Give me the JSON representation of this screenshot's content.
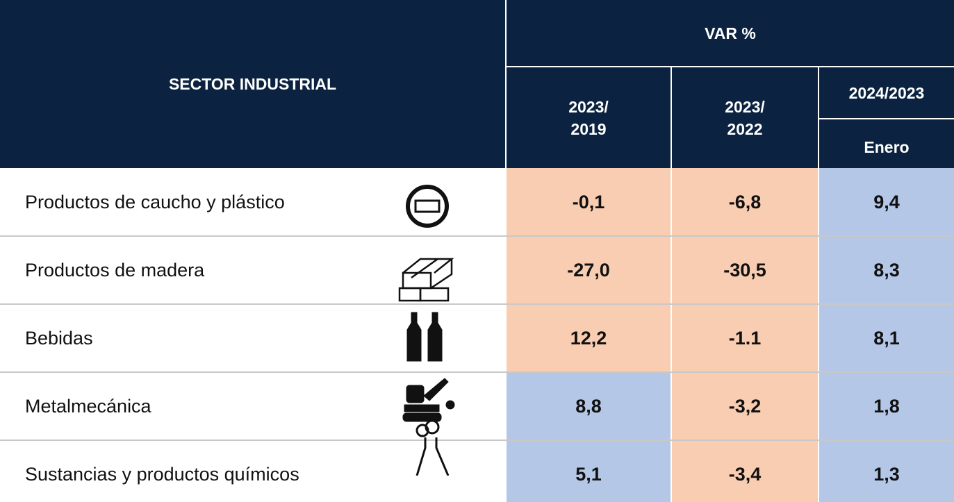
{
  "header": {
    "sector": "SECTOR INDUSTRIAL",
    "var": "VAR %",
    "col1": "2023/\n2019",
    "col2": "2023/\n2022",
    "col3": "2024/2023",
    "col3_sub": "Enero"
  },
  "table": {
    "rows": [
      {
        "label": "Productos de caucho y plástico",
        "cells": [
          {
            "text": "-0,1",
            "color": "#f8cdb1"
          },
          {
            "text": "-6,8",
            "color": "#f8cdb1"
          },
          {
            "text": "9,4",
            "color": "#b4c7e7"
          }
        ]
      },
      {
        "label": "Productos de madera",
        "cells": [
          {
            "text": "-27,0",
            "color": "#f8cdb1"
          },
          {
            "text": "-30,5",
            "color": "#f8cdb1"
          },
          {
            "text": "8,3",
            "color": "#b4c7e7"
          }
        ]
      },
      {
        "label": "Bebidas",
        "cells": [
          {
            "text": "12,2",
            "color": "#f8cdb1"
          },
          {
            "text": "-1.1",
            "color": "#f8cdb1"
          },
          {
            "text": "8,1",
            "color": "#b4c7e7"
          }
        ]
      },
      {
        "label": "Metalmecánica",
        "cells": [
          {
            "text": "8,8",
            "color": "#b4c7e7"
          },
          {
            "text": "-3,2",
            "color": "#f8cdb1"
          },
          {
            "text": "1,8",
            "color": "#b4c7e7"
          }
        ]
      },
      {
        "label": "Sustancias y productos químicos",
        "cells": [
          {
            "text": "5,1",
            "color": "#b4c7e7"
          },
          {
            "text": "-3,4",
            "color": "#f8cdb1"
          },
          {
            "text": "1,3",
            "color": "#b4c7e7"
          }
        ]
      }
    ]
  }
}
